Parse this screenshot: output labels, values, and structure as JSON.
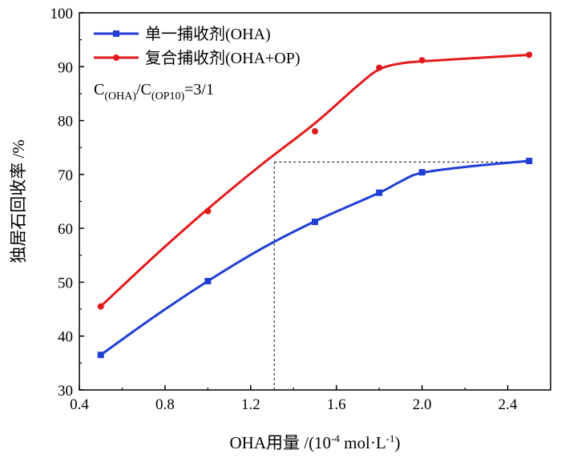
{
  "chart_data": {
    "type": "scatter",
    "xlabel": "OHA用量 /(10^-4 mol·L^-1)",
    "xlabel_parts": {
      "main": "OHA用量 /(10",
      "sup1": "-4",
      "mid": " mol·L",
      "sup2": "-1",
      "end": ")"
    },
    "ylabel": "独居石回收率 /%",
    "xlim": [
      0.4,
      2.6
    ],
    "ylim": [
      30,
      100
    ],
    "x_ticks": [
      0.4,
      0.8,
      1.2,
      1.6,
      2.0,
      2.4
    ],
    "x_tick_labels": [
      "0.4",
      "0.8",
      "1.2",
      "1.6",
      "2.0",
      "2.4"
    ],
    "y_ticks": [
      30,
      40,
      50,
      60,
      70,
      80,
      90,
      100
    ],
    "y_tick_labels": [
      "30",
      "40",
      "50",
      "60",
      "70",
      "80",
      "90",
      "100"
    ],
    "grid": false,
    "legend_position": "top-left",
    "series": [
      {
        "name": "单一捕收剂(OHA)",
        "color": "#1f3fd6",
        "marker": "square",
        "x": [
          0.5,
          1.0,
          1.5,
          1.8,
          2.0,
          2.5
        ],
        "y": [
          36.5,
          50.2,
          61.2,
          66.6,
          70.4,
          72.5
        ],
        "curve": [
          [
            0.5,
            36.5
          ],
          [
            0.75,
            43.6
          ],
          [
            1.0,
            50.2
          ],
          [
            1.25,
            56.2
          ],
          [
            1.5,
            61.3
          ],
          [
            1.8,
            66.6
          ],
          [
            1.9,
            68.7
          ],
          [
            2.0,
            70.3
          ],
          [
            2.25,
            71.6
          ],
          [
            2.5,
            72.5
          ]
        ]
      },
      {
        "name": "复合捕收剂(OHA+OP)",
        "color": "#e31a1c",
        "marker": "circle",
        "x": [
          0.5,
          1.0,
          1.5,
          1.8,
          2.0,
          2.5
        ],
        "y": [
          45.5,
          63.2,
          78.0,
          89.8,
          91.2,
          92.2
        ],
        "curve": [
          [
            0.5,
            45.5
          ],
          [
            0.75,
            54.8
          ],
          [
            1.0,
            63.6
          ],
          [
            1.25,
            71.8
          ],
          [
            1.5,
            79.5
          ],
          [
            1.7,
            86.5
          ],
          [
            1.8,
            89.5
          ],
          [
            1.9,
            90.6
          ],
          [
            2.0,
            91.0
          ],
          [
            2.25,
            91.6
          ],
          [
            2.5,
            92.2
          ]
        ]
      }
    ],
    "annotations": {
      "ratio_text": {
        "c1": "C",
        "s1": "(OHA)",
        "c2": "/C",
        "s2": "(OP10)",
        "end": "=3/1"
      },
      "dashed_guide": {
        "x": 1.31,
        "y": 72.3,
        "x_end": 2.5
      }
    }
  }
}
